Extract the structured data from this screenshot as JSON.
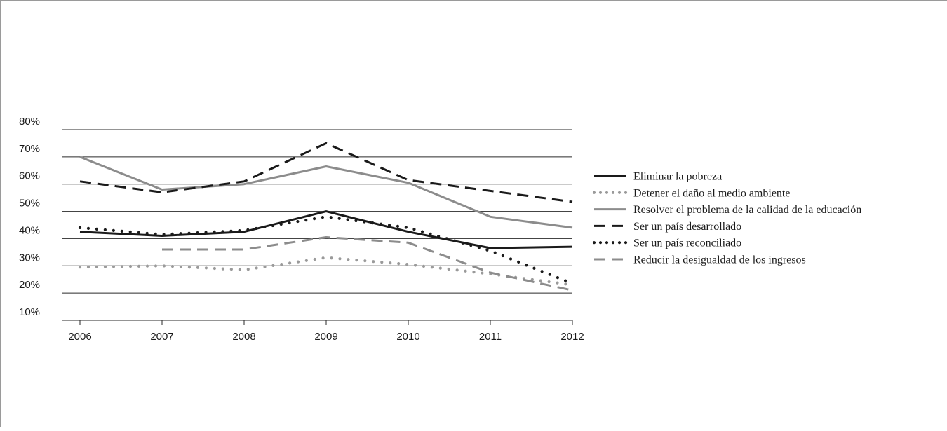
{
  "chart_data": {
    "type": "line",
    "title": "",
    "xlabel": "",
    "ylabel": "",
    "categories": [
      "2006",
      "2007",
      "2008",
      "2009",
      "2010",
      "2011",
      "2012"
    ],
    "y_ticks": [
      "10%",
      "20%",
      "30%",
      "40%",
      "50%",
      "60%",
      "70%",
      "80%"
    ],
    "y_tick_values": [
      10,
      20,
      30,
      40,
      50,
      60,
      70,
      80
    ],
    "ylim": [
      10,
      80
    ],
    "grid": "horizontal",
    "legend_position": "right",
    "series": [
      {
        "name": "Eliminar la pobreza",
        "color": "#1a1a1a",
        "style": "solid",
        "x": [
          2006,
          2007,
          2008,
          2009,
          2010,
          2011,
          2012
        ],
        "values": [
          42.5,
          41,
          42.5,
          50,
          42.5,
          36.5,
          37
        ]
      },
      {
        "name": "Detener el daño al medio ambiente",
        "color": "#9a9a9a",
        "style": "dotted",
        "x": [
          2006,
          2007,
          2008,
          2009,
          2010,
          2011,
          2012
        ],
        "values": [
          29.5,
          30,
          28.5,
          33,
          30.5,
          27,
          23
        ]
      },
      {
        "name": "Resolver el problema de la calidad de la educación",
        "color": "#8c8c8c",
        "style": "solid",
        "x": [
          2006,
          2007,
          2008,
          2009,
          2010,
          2011,
          2012
        ],
        "values": [
          70,
          58,
          60,
          66.5,
          60.5,
          48,
          44
        ]
      },
      {
        "name": "Ser un país desarrollado",
        "color": "#1a1a1a",
        "style": "dashed",
        "x": [
          2006,
          2007,
          2008,
          2009,
          2010,
          2011,
          2012
        ],
        "values": [
          61,
          57,
          61,
          75,
          61.5,
          57.5,
          53.5
        ]
      },
      {
        "name": "Ser un país reconciliado",
        "color": "#1a1a1a",
        "style": "dotted",
        "x": [
          2006,
          2007,
          2008,
          2009,
          2010,
          2011,
          2012
        ],
        "values": [
          44,
          41.5,
          43,
          48,
          44,
          35.5,
          23.5
        ]
      },
      {
        "name": "Reducir la desigualdad de los ingresos",
        "color": "#8c8c8c",
        "style": "dashed",
        "x": [
          2007,
          2008,
          2009,
          2010,
          2011,
          2012
        ],
        "values": [
          36,
          36,
          40.5,
          38.5,
          27.5,
          21
        ]
      }
    ]
  }
}
